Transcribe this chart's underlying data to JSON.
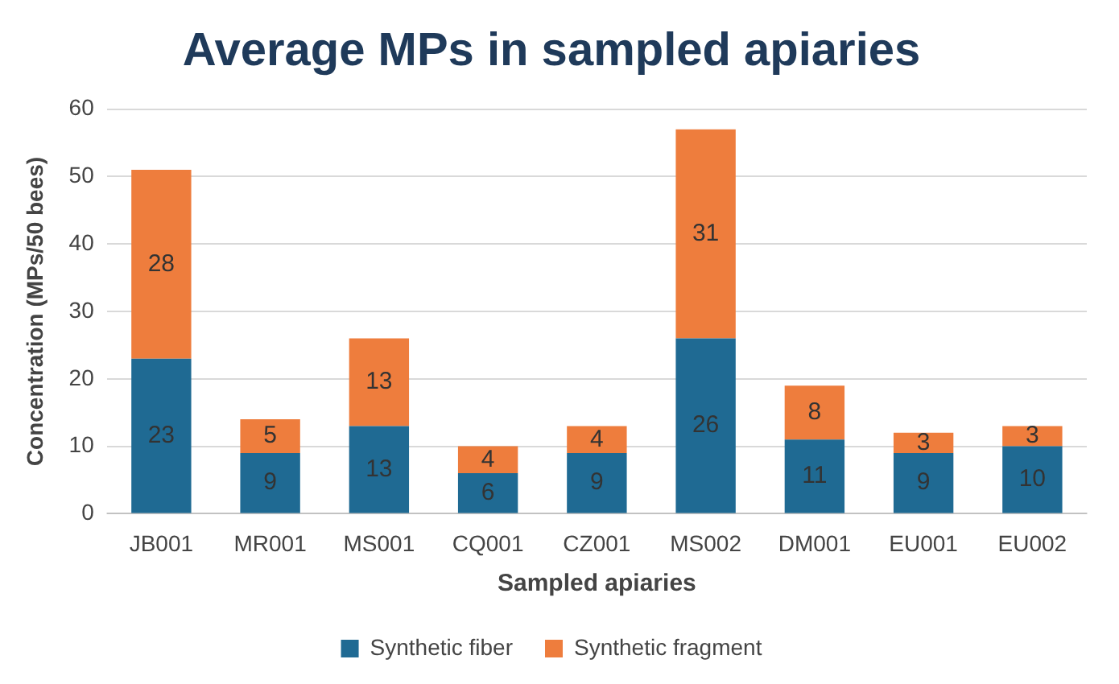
{
  "chart_data": {
    "type": "bar",
    "title": "Average MPs in sampled apiaries",
    "xlabel": "Sampled apiaries",
    "ylabel": "Concentration (MPs/50 bees)",
    "categories": [
      "JB001",
      "MR001",
      "MS001",
      "CQ001",
      "CZ001",
      "MS002",
      "DM001",
      "EU001",
      "EU002"
    ],
    "series": [
      {
        "name": "Synthetic fiber",
        "color": "#1f6a93",
        "values": [
          23,
          9,
          13,
          6,
          9,
          26,
          11,
          9,
          10
        ]
      },
      {
        "name": "Synthetic fragment",
        "color": "#ee7d3d",
        "values": [
          28,
          5,
          13,
          4,
          4,
          31,
          8,
          3,
          3
        ]
      }
    ],
    "stacked": true,
    "ylim": [
      0,
      60
    ],
    "yticks": [
      0,
      10,
      20,
      30,
      40,
      50,
      60
    ],
    "grid": "y",
    "legend": "bottom",
    "data_labels": true
  }
}
